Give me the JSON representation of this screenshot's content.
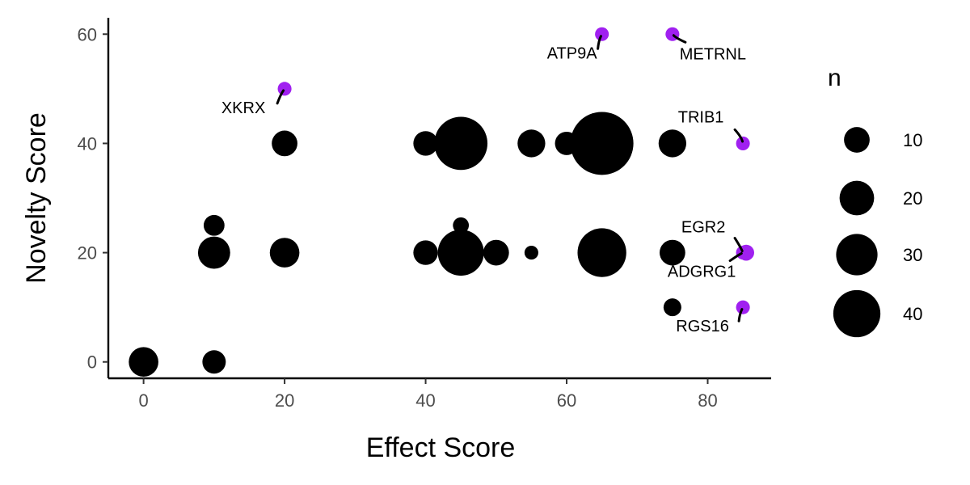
{
  "chart_data": {
    "type": "scatter",
    "title": "",
    "xlabel": "Effect Score",
    "ylabel": "Novelty Score",
    "xlim": [
      -5,
      89
    ],
    "ylim": [
      -3,
      63
    ],
    "x_ticks": [
      0,
      20,
      40,
      60,
      80
    ],
    "y_ticks": [
      0,
      20,
      40,
      60
    ],
    "grid": false,
    "size_legend": {
      "title": "n",
      "placement": "right",
      "values": [
        10,
        20,
        30,
        40
      ]
    },
    "colors": {
      "default_point": "#000000",
      "highlight_point": "#a020f0",
      "axis": "#000000",
      "tick_label": "#4d4d4d"
    },
    "points": [
      {
        "x": 0,
        "y": 0,
        "n": 14
      },
      {
        "x": 10,
        "y": 0,
        "n": 8
      },
      {
        "x": 10,
        "y": 20,
        "n": 17
      },
      {
        "x": 10,
        "y": 25,
        "n": 6
      },
      {
        "x": 20,
        "y": 20,
        "n": 14
      },
      {
        "x": 20,
        "y": 40,
        "n": 10
      },
      {
        "x": 40,
        "y": 40,
        "n": 9
      },
      {
        "x": 40,
        "y": 20,
        "n": 9
      },
      {
        "x": 45,
        "y": 40,
        "n": 52
      },
      {
        "x": 45,
        "y": 20,
        "n": 38
      },
      {
        "x": 45,
        "y": 25,
        "n": 3
      },
      {
        "x": 50,
        "y": 20,
        "n": 10
      },
      {
        "x": 55,
        "y": 40,
        "n": 12
      },
      {
        "x": 55,
        "y": 20,
        "n": 2
      },
      {
        "x": 60,
        "y": 40,
        "n": 8
      },
      {
        "x": 65,
        "y": 40,
        "n": 75
      },
      {
        "x": 65,
        "y": 20,
        "n": 43
      },
      {
        "x": 75,
        "y": 40,
        "n": 12
      },
      {
        "x": 75,
        "y": 20,
        "n": 10
      },
      {
        "x": 75,
        "y": 10,
        "n": 4
      }
    ],
    "highlighted": [
      {
        "gene": "ATP9A",
        "x": 65,
        "y": 60,
        "n": 2
      },
      {
        "gene": "METRNL",
        "x": 75,
        "y": 60,
        "n": 2
      },
      {
        "gene": "XKRX",
        "x": 20,
        "y": 50,
        "n": 2
      },
      {
        "gene": "TRIB1",
        "x": 85,
        "y": 40,
        "n": 2
      },
      {
        "gene": "EGR2",
        "x": 85,
        "y": 20,
        "n": 3
      },
      {
        "gene": "ADGRG1",
        "x": 85,
        "y": 20,
        "n": 2
      },
      {
        "gene": "RGS16",
        "x": 85,
        "y": 10,
        "n": 2
      }
    ]
  }
}
